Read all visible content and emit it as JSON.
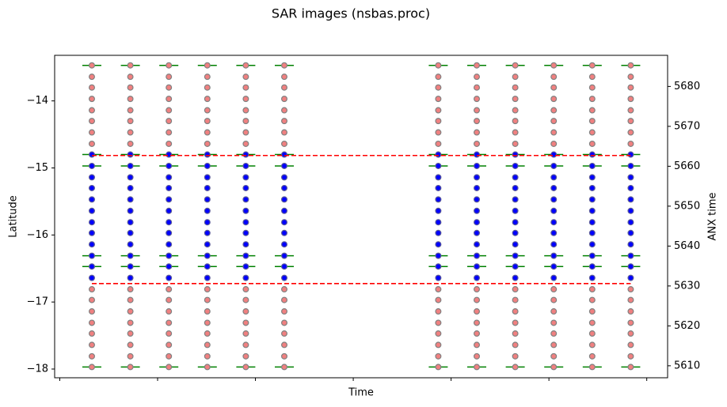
{
  "chart_data": {
    "type": "scatter",
    "title": "SAR images (nsbas.proc)",
    "x_label": "Time",
    "y_label": "Latitude",
    "y2_label": "ANX time",
    "x": [
      0,
      12,
      24,
      36,
      48,
      60,
      108,
      120,
      132,
      144,
      156,
      168
    ],
    "xlim": [
      -11.6,
      179.5
    ],
    "xticks": [
      -10,
      20.5,
      51,
      81.5,
      112,
      142.5,
      173
    ],
    "ylim": [
      -18.13,
      -13.32
    ],
    "yticks": [
      {
        "value": -14,
        "label": "−14"
      },
      {
        "value": -15,
        "label": "−15"
      },
      {
        "value": -16,
        "label": "−16"
      },
      {
        "value": -17,
        "label": "−17"
      },
      {
        "value": -18,
        "label": "−18"
      }
    ],
    "y2lim": [
      5607.0,
      5687.8
    ],
    "y2ticks": [
      5610,
      5620,
      5630,
      5640,
      5650,
      5660,
      5670,
      5680
    ],
    "series": [
      {
        "color": "#f08080",
        "edgecolor": "#808080",
        "latitudes": [
          -13.47,
          -13.64,
          -13.8,
          -13.97,
          -14.14,
          -14.3,
          -14.47,
          -14.64,
          -16.81,
          -16.97,
          -17.14,
          -17.31,
          -17.47,
          -17.64,
          -17.81,
          -17.97
        ]
      },
      {
        "color": "#0000ff",
        "edgecolor": "#5a5a9a",
        "latitudes": [
          -14.8,
          -14.97,
          -15.14,
          -15.3,
          -15.47,
          -15.64,
          -15.81,
          -15.97,
          -16.14,
          -16.31,
          -16.47,
          -16.64
        ]
      }
    ],
    "frame_bounds": {
      "color": "#008000",
      "latitudes": [
        -13.47,
        -14.8,
        -14.97,
        -16.31,
        -16.47,
        -17.97
      ]
    },
    "anx_lines": [
      {
        "color": "#ff0000",
        "axis": "y2",
        "x": [
          0,
          168
        ],
        "values": [
          5662.7,
          5662.7
        ]
      },
      {
        "color": "#ff0000",
        "axis": "y2",
        "x": [
          0,
          168
        ],
        "values": [
          5630.6,
          5630.6
        ]
      }
    ]
  }
}
